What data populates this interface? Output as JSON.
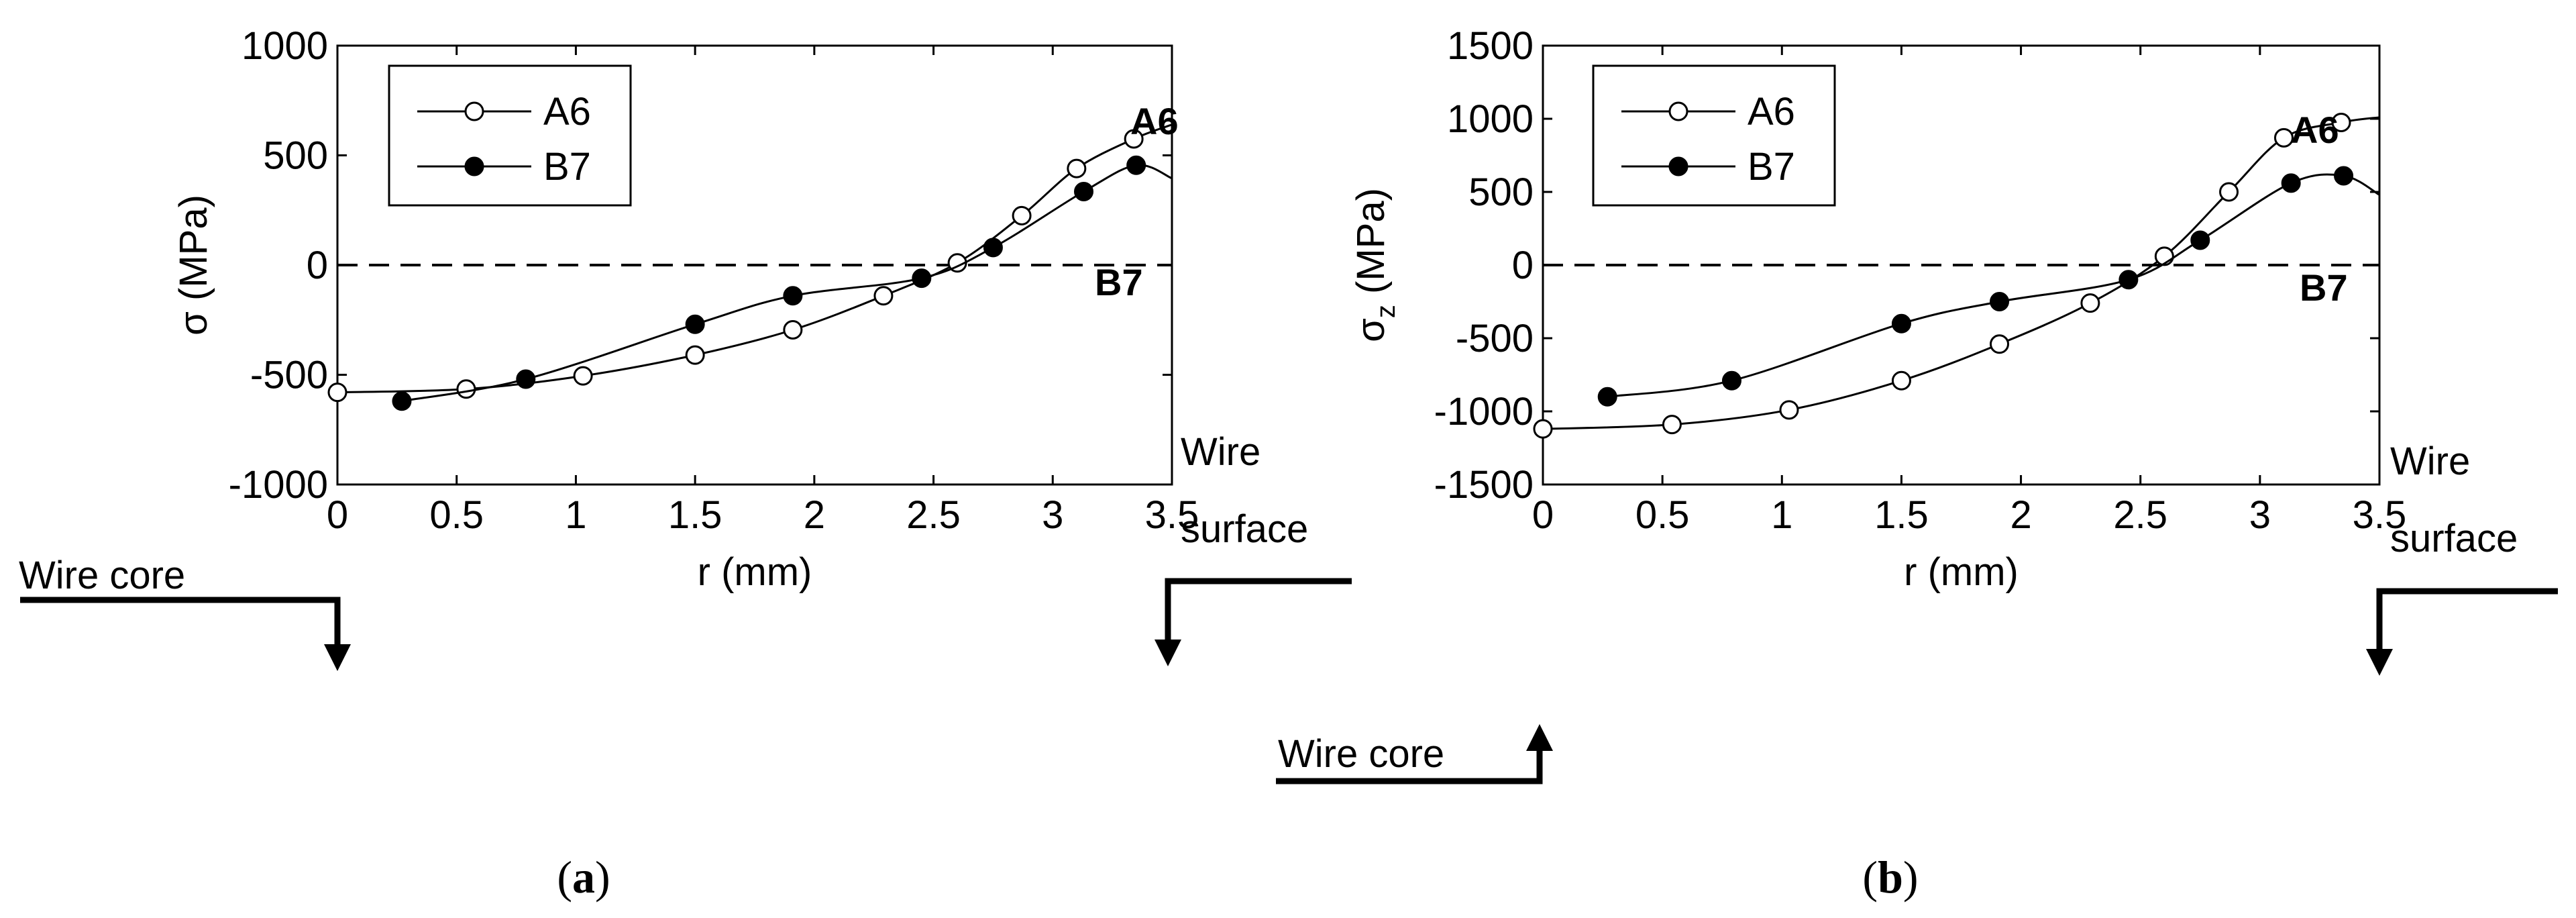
{
  "chart_data": [
    {
      "type": "line",
      "panel_label": "a",
      "ylabel_symbol": "σ",
      "ylabel_subscript": "",
      "ylabel_unit": " (MPa)",
      "xlabel": "r (mm)",
      "xlim": [
        0,
        3.5
      ],
      "ylim": [
        -1000,
        1000
      ],
      "xticks": [
        0,
        0.5,
        1,
        1.5,
        2,
        2.5,
        3,
        3.5
      ],
      "xtick_labels": [
        "0",
        "0.5",
        "1",
        "1.5",
        "2",
        "2.5",
        "3",
        "3.5"
      ],
      "yticks": [
        -1000,
        -500,
        0,
        500,
        1000
      ],
      "ytick_labels": [
        "-1000",
        "-500",
        "0",
        "500",
        "1000"
      ],
      "zero_line": true,
      "legend": [
        "A6",
        "B7"
      ],
      "legend_position": "top-left",
      "annotations": {
        "series_a": "A6",
        "series_b": "B7",
        "core": "Wire core",
        "surface_1": "Wire",
        "surface_2": "surface"
      },
      "series": [
        {
          "name": "A6",
          "marker": "open-circle",
          "x": [
            0,
            0.54,
            1.03,
            1.5,
            1.91,
            2.29,
            2.6,
            2.87,
            3.1,
            3.34
          ],
          "y": [
            -580,
            -565,
            -505,
            -410,
            -295,
            -140,
            10,
            225,
            440,
            575
          ],
          "curve_end": [
            3.5,
            640
          ]
        },
        {
          "name": "B7",
          "marker": "filled-circle",
          "x": [
            0.27,
            0.79,
            1.5,
            1.91,
            2.45,
            2.75,
            3.13,
            3.35
          ],
          "y": [
            -620,
            -520,
            -270,
            -140,
            -60,
            80,
            335,
            455
          ],
          "curve_end": [
            3.5,
            395
          ]
        }
      ]
    },
    {
      "type": "line",
      "panel_label": "b",
      "ylabel_symbol": "σ",
      "ylabel_subscript": "z",
      "ylabel_unit": " (MPa)",
      "xlabel": "r (mm)",
      "xlim": [
        0,
        3.5
      ],
      "ylim": [
        -1500,
        1500
      ],
      "xticks": [
        0,
        0.5,
        1,
        1.5,
        2,
        2.5,
        3,
        3.5
      ],
      "xtick_labels": [
        "0",
        "0.5",
        "1",
        "1.5",
        "2",
        "2.5",
        "3",
        "3.5"
      ],
      "yticks": [
        -1500,
        -1000,
        -500,
        0,
        500,
        1000,
        1500
      ],
      "ytick_labels": [
        "-1500",
        "-1000",
        "-500",
        "0",
        "500",
        "1000",
        "1500"
      ],
      "zero_line": true,
      "legend": [
        "A6",
        "B7"
      ],
      "legend_position": "top-left",
      "annotations": {
        "series_a": "A6",
        "series_b": "B7",
        "core": "Wire core",
        "surface_1": "Wire",
        "surface_2": "surface"
      },
      "series": [
        {
          "name": "A6",
          "marker": "open-circle",
          "x": [
            0,
            0.54,
            1.03,
            1.5,
            1.91,
            2.29,
            2.6,
            2.87,
            3.1,
            3.34
          ],
          "y": [
            -1120,
            -1090,
            -990,
            -790,
            -540,
            -260,
            60,
            500,
            870,
            975
          ],
          "curve_end": [
            3.5,
            1010
          ]
        },
        {
          "name": "B7",
          "marker": "filled-circle",
          "x": [
            0.27,
            0.79,
            1.5,
            1.91,
            2.45,
            2.75,
            3.13,
            3.35
          ],
          "y": [
            -900,
            -790,
            -400,
            -250,
            -100,
            170,
            560,
            610
          ],
          "curve_end": [
            3.5,
            480
          ]
        }
      ]
    }
  ]
}
